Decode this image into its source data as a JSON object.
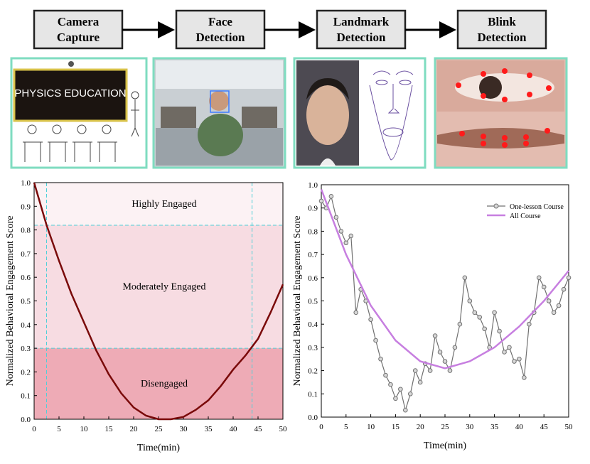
{
  "diagram": {
    "steps": [
      [
        "Camera",
        "Capture"
      ],
      [
        "Face",
        "Detection"
      ],
      [
        "Landmark",
        "Detection"
      ],
      [
        "Blink",
        "Detection"
      ]
    ],
    "board_text": "PHYSICS EDUCATION"
  },
  "chart_data": [
    {
      "type": "line",
      "x_label": "Time(min)",
      "y_label": "Normalized Behavioral Engagement Score",
      "xlim": [
        0,
        50
      ],
      "xticks": [
        0,
        5,
        10,
        15,
        20,
        25,
        30,
        35,
        40,
        45,
        50
      ],
      "ylim": [
        0,
        1
      ],
      "yticks": [
        {
          "value": 0,
          "label": "0.0"
        },
        0.1,
        0.2,
        0.3,
        0.4,
        0.5,
        0.6,
        0.7,
        0.8,
        0.9,
        {
          "value": 1,
          "label": "1.0"
        }
      ],
      "bands": [
        {
          "label": "Highly Engaged",
          "from": 0.82,
          "to": 1,
          "color": "#fcf2f4"
        },
        {
          "label": "Moderately Engaged",
          "from": 0.3,
          "to": 0.82,
          "color": "#f7dce2"
        },
        {
          "label": "Disengaged",
          "from": 0,
          "to": 0.3,
          "color": "#eeabb6"
        }
      ],
      "threshold_x": [
        2.5,
        43.8
      ],
      "threshold_y": [
        0.82,
        0.3
      ],
      "threshold_color": "#4fd0d8",
      "series": [
        {
          "color": "#7a0a0a",
          "x": [
            0,
            2.5,
            5,
            7.5,
            10,
            12.5,
            15,
            17.5,
            20,
            22.5,
            25,
            27.5,
            30,
            32.5,
            35,
            37.5,
            40,
            42.5,
            45,
            47.5,
            50
          ],
          "values": [
            1.0,
            0.82,
            0.67,
            0.53,
            0.41,
            0.29,
            0.19,
            0.11,
            0.05,
            0.015,
            0.0,
            0.0,
            0.01,
            0.04,
            0.08,
            0.14,
            0.21,
            0.27,
            0.34,
            0.45,
            0.57
          ]
        }
      ]
    },
    {
      "type": "line",
      "x_label": "Time(min)",
      "y_label": "Normalized Behavioral Engagement Score",
      "xlim": [
        0,
        50
      ],
      "xticks": [
        0,
        5,
        10,
        15,
        20,
        25,
        30,
        35,
        40,
        45,
        50
      ],
      "ylim": [
        0,
        1
      ],
      "yticks": [
        {
          "value": 0,
          "label": "0.0"
        },
        0.1,
        0.2,
        0.3,
        0.4,
        0.5,
        0.6,
        0.7,
        0.8,
        0.9,
        {
          "value": 1,
          "label": "1.0"
        }
      ],
      "series": [
        {
          "name": "One-lesson Course",
          "color": "#707070",
          "marker": "circle",
          "x": [
            0,
            1,
            2,
            3,
            4,
            5,
            6,
            7,
            8,
            9,
            10,
            11,
            12,
            13,
            14,
            15,
            16,
            17,
            18,
            19,
            20,
            21,
            22,
            23,
            24,
            25,
            26,
            27,
            28,
            29,
            30,
            31,
            32,
            33,
            34,
            35,
            36,
            37,
            38,
            39,
            40,
            41,
            42,
            43,
            44,
            45,
            46,
            47,
            48,
            49,
            50
          ],
          "values": [
            0.93,
            0.9,
            0.95,
            0.86,
            0.8,
            0.75,
            0.78,
            0.45,
            0.55,
            0.5,
            0.42,
            0.33,
            0.25,
            0.18,
            0.14,
            0.08,
            0.12,
            0.03,
            0.1,
            0.2,
            0.15,
            0.23,
            0.2,
            0.35,
            0.28,
            0.24,
            0.2,
            0.3,
            0.4,
            0.6,
            0.5,
            0.45,
            0.43,
            0.38,
            0.3,
            0.45,
            0.37,
            0.28,
            0.3,
            0.24,
            0.25,
            0.17,
            0.4,
            0.45,
            0.6,
            0.56,
            0.5,
            0.45,
            0.48,
            0.55,
            0.6
          ]
        },
        {
          "name": "All Course",
          "color": "#c77fe0",
          "x": [
            0,
            5,
            10,
            15,
            20,
            25,
            30,
            35,
            40,
            45,
            50
          ],
          "values": [
            0.98,
            0.7,
            0.48,
            0.33,
            0.24,
            0.21,
            0.24,
            0.3,
            0.39,
            0.5,
            0.63
          ]
        }
      ]
    }
  ]
}
